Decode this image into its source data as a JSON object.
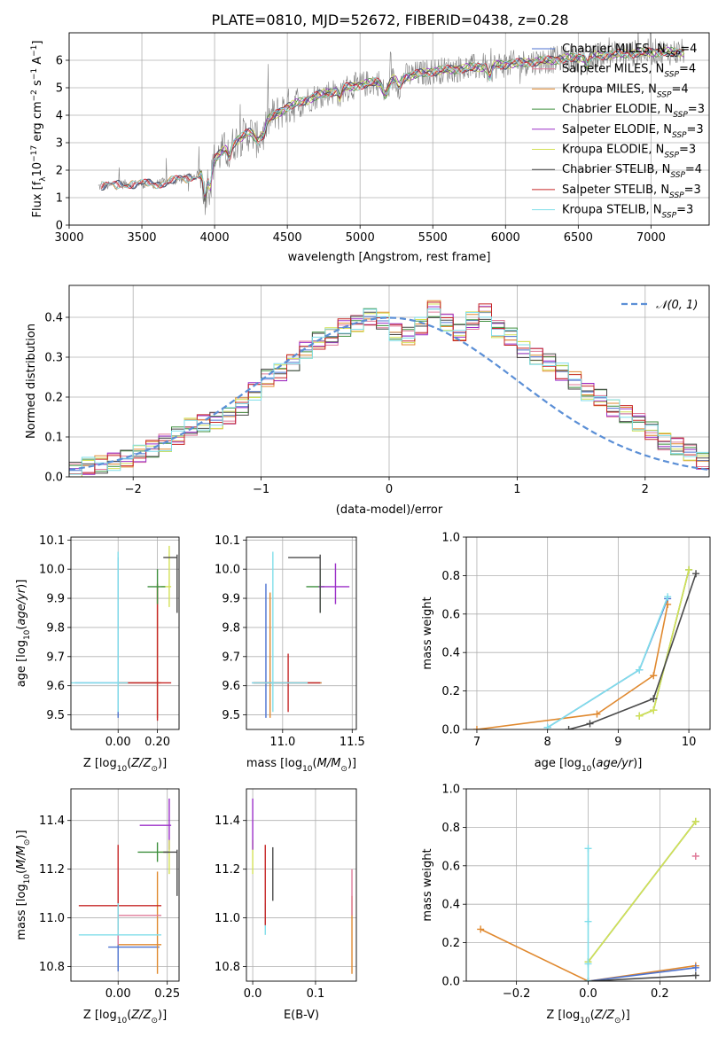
{
  "title": "PLATE=0810, MJD=52672, FIBERID=0438, z=0.28",
  "colors": {
    "Chabrier MILES": "#4c72d0",
    "Salpeter MILES": "#e07b9a",
    "Kroupa MILES": "#e0892f",
    "Chabrier ELODIE": "#3d8f3d",
    "Salpeter ELODIE": "#9b2fc8",
    "Kroupa ELODIE": "#d4e157",
    "Chabrier STELIB": "#4a4a4a",
    "Salpeter STELIB": "#c62828",
    "Kroupa STELIB": "#80deea",
    "data": "#808080",
    "normal": "#5b8fd6"
  },
  "chart_data": [
    {
      "id": "spectrum",
      "type": "line",
      "title": "PLATE=0810, MJD=52672, FIBERID=0438, z=0.28",
      "xlabel": "wavelength [Angstrom, rest frame]",
      "ylabel": "Flux [fλ10⁻¹⁷ erg cm⁻² s⁻¹ A⁻¹]",
      "xlim": [
        3000,
        7400
      ],
      "ylim": [
        0,
        7
      ],
      "xticks": [
        3000,
        3500,
        4000,
        4500,
        5000,
        5500,
        6000,
        6500,
        7000
      ],
      "yticks": [
        0,
        1,
        2,
        3,
        4,
        5,
        6
      ],
      "legend": [
        "Chabrier MILES, N_SSP=4",
        "Salpeter MILES, N_SSP=4",
        "Kroupa MILES, N_SSP=4",
        "Chabrier ELODIE, N_SSP=3",
        "Salpeter ELODIE, N_SSP=3",
        "Kroupa ELODIE, N_SSP=3",
        "Chabrier STELIB, N_SSP=4",
        "Salpeter STELIB, N_SSP=3",
        "Kroupa STELIB, N_SSP=3"
      ],
      "legend_display": [
        {
          "pre": "Chabrier MILES, N",
          "sub": "SSP",
          "post": "=4"
        },
        {
          "pre": "Salpeter MILES, N",
          "sub": "SSP",
          "post": "=4"
        },
        {
          "pre": "Kroupa MILES, N",
          "sub": "SSP",
          "post": "=4"
        },
        {
          "pre": "Chabrier ELODIE, N",
          "sub": "SSP",
          "post": "=3"
        },
        {
          "pre": "Salpeter ELODIE, N",
          "sub": "SSP",
          "post": "=3"
        },
        {
          "pre": "Kroupa ELODIE, N",
          "sub": "SSP",
          "post": "=3"
        },
        {
          "pre": "Chabrier STELIB, N",
          "sub": "SSP",
          "post": "=4"
        },
        {
          "pre": "Salpeter STELIB, N",
          "sub": "SSP",
          "post": "=3"
        },
        {
          "pre": "Kroupa STELIB, N",
          "sub": "SSP",
          "post": "=3"
        }
      ],
      "legend_placement": "right",
      "continuum": [
        [
          3200,
          1.4
        ],
        [
          3400,
          1.5
        ],
        [
          3600,
          1.5
        ],
        [
          3800,
          1.7
        ],
        [
          3950,
          1.9
        ],
        [
          4000,
          2.4
        ],
        [
          4100,
          2.9
        ],
        [
          4300,
          3.6
        ],
        [
          4500,
          4.3
        ],
        [
          4700,
          4.7
        ],
        [
          4900,
          5.0
        ],
        [
          5100,
          5.2
        ],
        [
          5300,
          5.4
        ],
        [
          5500,
          5.6
        ],
        [
          5700,
          5.7
        ],
        [
          5900,
          5.8
        ],
        [
          6100,
          5.9
        ],
        [
          6300,
          6.0
        ],
        [
          6500,
          6.1
        ],
        [
          6700,
          6.2
        ],
        [
          7000,
          6.3
        ],
        [
          7200,
          6.3
        ]
      ]
    },
    {
      "id": "residuals",
      "type": "bar",
      "xlabel": "(data-model)/error",
      "ylabel": "Normed distribution",
      "xlim": [
        -2.5,
        2.5
      ],
      "ylim": [
        0,
        0.48
      ],
      "xticks": [
        -2,
        -1,
        0,
        1,
        2
      ],
      "yticks": [
        0.0,
        0.1,
        0.2,
        0.3,
        0.4
      ],
      "legend": [
        "N(0,1)"
      ],
      "legend_label": "𝒩(0, 1)",
      "legend_placement": "top-right",
      "bin_width": 0.1,
      "bins_start": -2.5,
      "histogram_series": {
        "Chabrier MILES": [
          0.016,
          0.028,
          0.031,
          0.038,
          0.045,
          0.058,
          0.071,
          0.085,
          0.103,
          0.125,
          0.134,
          0.142,
          0.154,
          0.176,
          0.214,
          0.248,
          0.262,
          0.287,
          0.318,
          0.341,
          0.352,
          0.374,
          0.385,
          0.402,
          0.391,
          0.362,
          0.353,
          0.378,
          0.421,
          0.387,
          0.361,
          0.392,
          0.412,
          0.371,
          0.352,
          0.318,
          0.301,
          0.287,
          0.264,
          0.242,
          0.213,
          0.198,
          0.172,
          0.158,
          0.137,
          0.116,
          0.088,
          0.076,
          0.062,
          0.041
        ]
      },
      "normal": {
        "mu": 0,
        "sigma": 1
      }
    },
    {
      "id": "age_vs_Z",
      "type": "scatter",
      "xlabel": "Z [log10(Z/Z⊙)]",
      "ylabel": "age [log10(age/yr)]",
      "xlim": [
        -0.24,
        0.31
      ],
      "ylim": [
        9.45,
        10.11
      ],
      "xticks": [
        0.0,
        0.2
      ],
      "yticks": [
        9.5,
        9.6,
        9.7,
        9.8,
        9.9,
        10.0,
        10.1
      ],
      "points": [
        {
          "series": "Chabrier MILES",
          "x": 0.0,
          "y": 9.61,
          "xerr": [
            0.22,
            0.21
          ],
          "yerr": [
            0.12,
            0.43
          ]
        },
        {
          "series": "Kroupa MILES",
          "x": 0.2,
          "y": 9.61,
          "xerr": [
            0.2,
            0.02
          ],
          "yerr": [
            0.12,
            0.33
          ]
        },
        {
          "series": "Salpeter STELIB",
          "x": 0.2,
          "y": 9.61,
          "xerr": [
            0.2,
            0.07
          ],
          "yerr": [
            0.13,
            0.34
          ]
        },
        {
          "series": "Kroupa ELODIE",
          "x": 0.26,
          "y": 9.94,
          "xerr": [
            0.04,
            0.01
          ],
          "yerr": [
            0.07,
            0.14
          ]
        },
        {
          "series": "Chabrier ELODIE",
          "x": 0.2,
          "y": 9.94,
          "xerr": [
            0.05,
            0.04
          ],
          "yerr": [
            0.06,
            0.06
          ]
        },
        {
          "series": "Chabrier STELIB",
          "x": 0.3,
          "y": 10.04,
          "xerr": [
            0.07,
            0.0
          ],
          "yerr": [
            0.19,
            0.01
          ]
        },
        {
          "series": "Kroupa STELIB",
          "x": 0.0,
          "y": 9.61,
          "xerr": [
            0.3,
            0.05
          ],
          "yerr": [
            0.1,
            0.45
          ]
        }
      ]
    },
    {
      "id": "age_vs_mass",
      "type": "scatter",
      "xlabel": "mass [log10(M/M⊙)]",
      "ylabel": "",
      "xlim": [
        10.74,
        11.53
      ],
      "ylim": [
        9.45,
        10.11
      ],
      "xticks": [
        11.0,
        11.5
      ],
      "yticks": [
        9.5,
        9.6,
        9.7,
        9.8,
        9.9,
        10.0,
        10.1
      ],
      "points": [
        {
          "series": "Chabrier MILES",
          "x": 10.88,
          "y": 9.61,
          "xerr": [
            0.1,
            0.4
          ],
          "yerr": [
            0.12,
            0.34
          ]
        },
        {
          "series": "Kroupa MILES",
          "x": 10.91,
          "y": 9.61,
          "xerr": [
            0.12,
            0.37
          ],
          "yerr": [
            0.12,
            0.31
          ]
        },
        {
          "series": "Salpeter STELIB",
          "x": 11.04,
          "y": 9.61,
          "xerr": [
            0.25,
            0.23
          ],
          "yerr": [
            0.1,
            0.1
          ]
        },
        {
          "series": "Chabrier ELODIE",
          "x": 11.27,
          "y": 9.94,
          "xerr": [
            0.1,
            0.03
          ],
          "yerr": [
            0.09,
            0.06
          ]
        },
        {
          "series": "Salpeter ELODIE",
          "x": 11.38,
          "y": 9.94,
          "xerr": [
            0.12,
            0.1
          ],
          "yerr": [
            0.06,
            0.08
          ]
        },
        {
          "series": "Chabrier STELIB",
          "x": 11.27,
          "y": 10.04,
          "xerr": [
            0.23,
            0.0
          ],
          "yerr": [
            0.19,
            0.01
          ]
        },
        {
          "series": "Kroupa STELIB",
          "x": 10.93,
          "y": 9.61,
          "xerr": [
            0.15,
            0.25
          ],
          "yerr": [
            0.1,
            0.45
          ]
        }
      ]
    },
    {
      "id": "mass_weight_vs_age",
      "type": "line",
      "xlabel": "age [log10(age/yr)]",
      "ylabel": "mass weight",
      "xlim": [
        6.85,
        10.3
      ],
      "ylim": [
        0,
        1.0
      ],
      "xticks": [
        7,
        8,
        9,
        10
      ],
      "yticks": [
        0.0,
        0.2,
        0.4,
        0.6,
        0.8,
        1.0
      ],
      "series": [
        {
          "name": "Chabrier MILES",
          "x": [
            8.0,
            9.3,
            9.7
          ],
          "y": [
            0.01,
            0.31,
            0.68
          ]
        },
        {
          "name": "Kroupa MILES",
          "x": [
            7.0,
            8.7,
            9.5,
            9.7
          ],
          "y": [
            0.0,
            0.08,
            0.28,
            0.65
          ]
        },
        {
          "name": "Chabrier ELODIE",
          "x": [
            9.3,
            9.5,
            10.0
          ],
          "y": [
            0.07,
            0.1,
            0.83
          ]
        },
        {
          "name": "Kroupa ELODIE",
          "x": [
            9.3,
            9.5,
            10.0
          ],
          "y": [
            0.07,
            0.1,
            0.83
          ]
        },
        {
          "name": "Chabrier STELIB",
          "x": [
            8.3,
            8.6,
            9.5,
            10.1
          ],
          "y": [
            0.0,
            0.03,
            0.16,
            0.81
          ]
        },
        {
          "name": "Kroupa STELIB",
          "x": [
            8.0,
            9.3,
            9.7
          ],
          "y": [
            0.01,
            0.31,
            0.69
          ]
        }
      ]
    },
    {
      "id": "mass_vs_Z",
      "type": "scatter",
      "xlabel": "Z [log10(Z/Z⊙)]",
      "ylabel": "mass [log10(M/M⊙)]",
      "xlim": [
        -0.24,
        0.31
      ],
      "ylim": [
        10.74,
        11.53
      ],
      "xticks": [
        0.0,
        0.25
      ],
      "yticks": [
        10.8,
        11.0,
        11.2,
        11.4
      ],
      "points": [
        {
          "series": "Chabrier MILES",
          "x": 0.0,
          "y": 10.88,
          "xerr": [
            0.05,
            0.21
          ],
          "yerr": [
            0.1,
            0.25
          ]
        },
        {
          "series": "Kroupa MILES",
          "x": 0.2,
          "y": 10.89,
          "xerr": [
            0.2,
            0.02
          ],
          "yerr": [
            0.12,
            0.3
          ]
        },
        {
          "series": "Salpeter MILES",
          "x": 0.0,
          "y": 11.01,
          "xerr": [
            0.0,
            0.22
          ],
          "yerr": [
            0.12,
            0.2
          ]
        },
        {
          "series": "Salpeter STELIB",
          "x": 0.0,
          "y": 11.05,
          "xerr": [
            0.2,
            0.22
          ],
          "yerr": [
            0.1,
            0.25
          ]
        },
        {
          "series": "Salpeter ELODIE",
          "x": 0.26,
          "y": 11.38,
          "xerr": [
            0.15,
            0.01
          ],
          "yerr": [
            0.1,
            0.11
          ]
        },
        {
          "series": "Kroupa ELODIE",
          "x": 0.26,
          "y": 11.27,
          "xerr": [
            0.05,
            0.0
          ],
          "yerr": [
            0.09,
            0.05
          ]
        },
        {
          "series": "Chabrier ELODIE",
          "x": 0.2,
          "y": 11.27,
          "xerr": [
            0.1,
            0.06
          ],
          "yerr": [
            0.04,
            0.04
          ]
        },
        {
          "series": "Chabrier STELIB",
          "x": 0.3,
          "y": 11.27,
          "xerr": [
            0.07,
            0.0
          ],
          "yerr": [
            0.18,
            0.01
          ]
        },
        {
          "series": "Kroupa STELIB",
          "x": 0.0,
          "y": 10.93,
          "xerr": [
            0.2,
            0.22
          ],
          "yerr": [
            0.0,
            0.13
          ]
        }
      ]
    },
    {
      "id": "mass_vs_EBV",
      "type": "scatter",
      "xlabel": "E(B-V)",
      "ylabel": "",
      "xlim": [
        -0.01,
        0.165
      ],
      "ylim": [
        10.74,
        11.53
      ],
      "xticks": [
        0.0,
        0.1
      ],
      "yticks": [
        10.8,
        11.0,
        11.2,
        11.4
      ],
      "points": [
        {
          "series": "Kroupa ELODIE",
          "x": 0.0,
          "y": 11.27,
          "yerr": [
            0.09,
            0.05
          ]
        },
        {
          "series": "Salpeter ELODIE",
          "x": 0.0,
          "y": 11.38,
          "yerr": [
            0.1,
            0.11
          ]
        },
        {
          "series": "Kroupa STELIB",
          "x": 0.02,
          "y": 10.93,
          "yerr": [
            0.0,
            0.13
          ]
        },
        {
          "series": "Salpeter STELIB",
          "x": 0.02,
          "y": 11.05,
          "yerr": [
            0.08,
            0.25
          ]
        },
        {
          "series": "Chabrier STELIB",
          "x": 0.032,
          "y": 11.07,
          "yerr": [
            0.0,
            0.22
          ]
        },
        {
          "series": "Kroupa MILES",
          "x": 0.158,
          "y": 10.89,
          "yerr": [
            0.12,
            0.2
          ]
        },
        {
          "series": "Salpeter MILES",
          "x": 0.158,
          "y": 11.01,
          "yerr": [
            0.0,
            0.19
          ]
        }
      ]
    },
    {
      "id": "mass_weight_vs_Z",
      "type": "line",
      "xlabel": "Z [log10(Z/Z⊙)]",
      "ylabel": "mass weight",
      "xlim": [
        -0.34,
        0.34
      ],
      "ylim": [
        0,
        1.0
      ],
      "xticks": [
        -0.2,
        0.0,
        0.2
      ],
      "yticks": [
        0.0,
        0.2,
        0.4,
        0.6,
        0.8,
        1.0
      ],
      "series": [
        {
          "name": "Kroupa MILES",
          "x": [
            -0.3,
            0.0,
            0.3
          ],
          "y": [
            0.27,
            0.0,
            0.08
          ]
        },
        {
          "name": "Chabrier MILES",
          "x": [
            0.0,
            0.3
          ],
          "y": [
            0.0,
            0.07
          ]
        },
        {
          "name": "Chabrier ELODIE",
          "x": [
            0.0,
            0.3
          ],
          "y": [
            0.1,
            0.83
          ]
        },
        {
          "name": "Kroupa ELODIE",
          "x": [
            0.0,
            0.3
          ],
          "y": [
            0.1,
            0.83
          ]
        },
        {
          "name": "Chabrier STELIB",
          "x": [
            0.0,
            0.3
          ],
          "y": [
            0.0,
            0.03
          ]
        },
        {
          "name": "Salpeter MILES",
          "x": [
            0.3,
            0.3
          ],
          "y": [
            0.65,
            0.65
          ]
        },
        {
          "name": "Kroupa STELIB",
          "x": [
            0.0,
            0.0,
            0.0,
            0.0
          ],
          "y": [
            0.0,
            0.09,
            0.31,
            0.69
          ]
        }
      ]
    }
  ]
}
